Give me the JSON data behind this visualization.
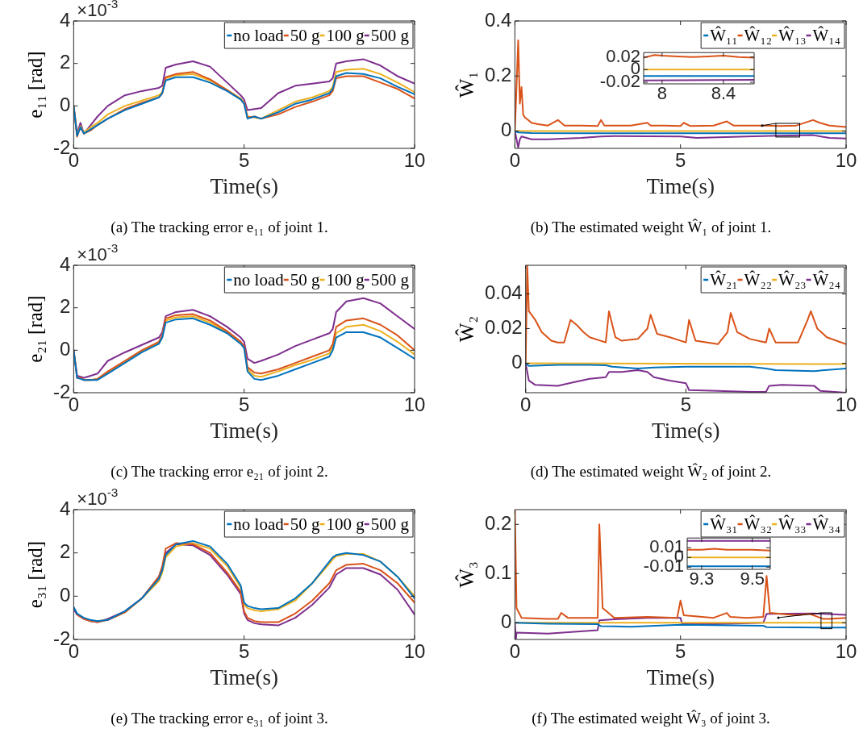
{
  "chart_data": [
    {
      "type": "line",
      "title": "(a) The tracking error e₁₁ of joint 1.",
      "xlabel": "Time(s)",
      "ylabel": "e₁₁ [rad]",
      "annotations": [
        "×10$^{-3}$"
      ],
      "legend": "top right",
      "x": [
        0,
        0.1,
        0.2,
        0.3,
        0.5,
        0.7,
        1,
        1.5,
        2,
        2.5,
        2.6,
        2.7,
        3,
        3.5,
        4,
        4.5,
        4.9,
        5,
        5.1,
        5.3,
        5.5,
        6,
        6.5,
        7,
        7.5,
        7.6,
        7.7,
        8,
        8.5,
        9,
        9.5,
        10
      ],
      "xlim": [
        0,
        10
      ],
      "xticks": [
        0,
        5,
        10
      ],
      "ylim": [
        -2,
        4
      ],
      "yticks": [
        -2,
        0,
        2,
        4
      ],
      "series": [
        {
          "name": "no load",
          "color": "#0072bd",
          "values": [
            0,
            -1.4,
            -1.0,
            -1.3,
            -1.1,
            -0.9,
            -0.6,
            -0.2,
            0.1,
            0.4,
            0.6,
            1.2,
            1.35,
            1.35,
            1.1,
            0.7,
            0.3,
            0.1,
            -0.6,
            -0.5,
            -0.6,
            -0.3,
            0.1,
            0.3,
            0.6,
            0.8,
            1.4,
            1.55,
            1.5,
            1.3,
            0.9,
            0.55
          ]
        },
        {
          "name": "50 g",
          "color": "#d95319",
          "values": [
            0,
            -1.45,
            -1.0,
            -1.3,
            -1.15,
            -0.9,
            -0.6,
            -0.15,
            0.15,
            0.4,
            0.6,
            1.35,
            1.5,
            1.6,
            1.25,
            0.75,
            0.3,
            0.1,
            -0.55,
            -0.5,
            -0.6,
            -0.4,
            -0.05,
            0.2,
            0.5,
            0.7,
            1.3,
            1.4,
            1.4,
            1.1,
            0.8,
            0.35
          ]
        },
        {
          "name": "100 g",
          "color": "#edb120",
          "values": [
            0,
            -1.35,
            -0.95,
            -1.25,
            -1.0,
            -0.8,
            -0.4,
            0.0,
            0.25,
            0.5,
            0.65,
            1.3,
            1.45,
            1.5,
            1.2,
            0.75,
            0.35,
            0.15,
            -0.5,
            -0.55,
            -0.6,
            -0.2,
            0.2,
            0.4,
            0.7,
            0.9,
            1.6,
            1.7,
            1.75,
            1.5,
            1.1,
            0.65
          ]
        },
        {
          "name": "500 g",
          "color": "#7e2f8e",
          "values": [
            0,
            -1.3,
            -0.8,
            -1.3,
            -0.9,
            -0.5,
            0,
            0.5,
            0.7,
            0.85,
            0.95,
            1.8,
            1.95,
            2.1,
            1.85,
            1.1,
            0.5,
            0.3,
            -0.2,
            -0.15,
            -0.1,
            0.6,
            0.95,
            1.05,
            1.15,
            1.3,
            2.0,
            2.1,
            2.2,
            1.9,
            1.4,
            1.05
          ]
        }
      ]
    },
    {
      "type": "line",
      "title": "(b) The estimated weight Ŵ₁ of joint 1.",
      "xlabel": "Time(s)",
      "ylabel": "Ŵ₁",
      "legend": "top right",
      "xlim": [
        0,
        10
      ],
      "xticks": [
        0,
        5,
        10
      ],
      "ylim": [
        -0.063,
        0.4
      ],
      "yticks": [
        0,
        0.2,
        0.4
      ],
      "series": [
        {
          "name": "Ŵ₁₁",
          "color": "#0072bd",
          "x": [
            0,
            0.1,
            0.5,
            2,
            5,
            7,
            10
          ],
          "values": [
            0,
            -0.005,
            -0.007,
            -0.008,
            -0.008,
            -0.008,
            -0.008
          ]
        },
        {
          "name": "Ŵ₁₂",
          "color": "#d95319",
          "x": [
            0,
            0.1,
            0.15,
            0.2,
            0.25,
            0.3,
            0.4,
            0.5,
            0.7,
            1,
            1.3,
            1.5,
            2,
            2.5,
            2.6,
            2.7,
            3,
            3.5,
            4,
            4.1,
            4.5,
            5,
            5.1,
            5.3,
            6,
            6.4,
            6.6,
            7,
            7.5,
            8,
            8.5,
            9,
            9.2,
            9.5,
            10
          ],
          "values": [
            0,
            0.33,
            0.1,
            0.16,
            0.06,
            0.05,
            0.04,
            0.03,
            0.025,
            0.02,
            0.04,
            0.02,
            0.02,
            0.018,
            0.04,
            0.02,
            0.02,
            0.02,
            0.03,
            0.02,
            0.02,
            0.018,
            0.03,
            0.018,
            0.02,
            0.035,
            0.02,
            0.02,
            0.02,
            0.018,
            0.02,
            0.04,
            0.03,
            0.02,
            0.015
          ]
        },
        {
          "name": "Ŵ₁₃",
          "color": "#edb120",
          "x": [
            0,
            10
          ],
          "values": [
            0,
            0
          ]
        },
        {
          "name": "Ŵ₁₄",
          "color": "#7e2f8e",
          "x": [
            0,
            0.1,
            0.15,
            0.2,
            0.5,
            1,
            2,
            2.6,
            3,
            5,
            5.5,
            7,
            8,
            9,
            9.5,
            10
          ],
          "values": [
            0,
            -0.06,
            -0.03,
            -0.02,
            -0.03,
            -0.03,
            -0.025,
            -0.02,
            -0.018,
            -0.02,
            -0.025,
            -0.02,
            -0.017,
            -0.015,
            -0.025,
            -0.027
          ]
        }
      ]
    },
    {
      "type": "line",
      "xlim": [
        7.88,
        8.6
      ],
      "xticks": [
        8,
        8.4
      ],
      "ylim": [
        -0.0225,
        0.027
      ],
      "yticks": [
        -0.02,
        0,
        0.02
      ],
      "series": [
        {
          "color": "#d95319",
          "x": [
            7.88,
            7.95,
            8.0,
            8.1,
            8.2,
            8.3,
            8.4,
            8.5,
            8.6
          ],
          "values": [
            0.019,
            0.023,
            0.022,
            0.021,
            0.02,
            0.021,
            0.022,
            0.02,
            0.019
          ]
        },
        {
          "color": "#edb120",
          "x": [
            7.88,
            8.6
          ],
          "values": [
            0,
            0
          ]
        },
        {
          "color": "#0072bd",
          "x": [
            7.88,
            8.6
          ],
          "values": [
            -0.01,
            -0.01
          ]
        },
        {
          "color": "#7e2f8e",
          "x": [
            7.88,
            8.6
          ],
          "values": [
            -0.017,
            -0.016
          ]
        }
      ]
    },
    {
      "type": "line",
      "title": "(c) The tracking error e₂₁ of joint 2.",
      "xlabel": "Time(s)",
      "ylabel": "e₂₁ [rad]",
      "annotations": [
        "×10$^{-3}$"
      ],
      "legend": "top right",
      "x": [
        0,
        0.1,
        0.2,
        0.3,
        0.5,
        0.7,
        1,
        1.5,
        2,
        2.5,
        2.6,
        2.7,
        3,
        3.5,
        4,
        4.5,
        4.9,
        5,
        5.1,
        5.3,
        5.5,
        6,
        6.5,
        7,
        7.5,
        7.6,
        7.7,
        8,
        8.5,
        9,
        9.5,
        10
      ],
      "xlim": [
        0,
        10
      ],
      "xticks": [
        0,
        5,
        10
      ],
      "ylim": [
        -2,
        4
      ],
      "yticks": [
        -2,
        0,
        2,
        4
      ],
      "series": [
        {
          "name": "no load",
          "color": "#0072bd",
          "values": [
            0,
            -1.3,
            -1.35,
            -1.4,
            -1.4,
            -1.4,
            -1.1,
            -0.6,
            -0.1,
            0.3,
            0.6,
            1.3,
            1.45,
            1.5,
            1.2,
            0.8,
            0.3,
            0.1,
            -1.0,
            -1.35,
            -1.4,
            -1.2,
            -0.9,
            -0.6,
            -0.3,
            0,
            0.6,
            0.85,
            0.85,
            0.6,
            0.1,
            -0.4
          ]
        },
        {
          "name": "50 g",
          "color": "#d95319",
          "values": [
            0,
            -1.3,
            -1.3,
            -1.4,
            -1.4,
            -1.35,
            -1.0,
            -0.5,
            0,
            0.4,
            0.7,
            1.5,
            1.65,
            1.7,
            1.4,
            0.9,
            0.4,
            0.2,
            -0.8,
            -1.05,
            -1.1,
            -0.9,
            -0.6,
            -0.3,
            0,
            0.3,
            1.1,
            1.4,
            1.5,
            1.2,
            0.7,
            0
          ]
        },
        {
          "name": "100 g",
          "color": "#edb120",
          "values": [
            null,
            null,
            null,
            -1.4,
            -1.4,
            -1.35,
            -1.05,
            -0.55,
            -0.05,
            0.35,
            0.65,
            1.4,
            1.55,
            1.6,
            1.3,
            0.85,
            0.35,
            0.15,
            -0.9,
            -1.2,
            -1.25,
            -1.0,
            -0.7,
            -0.45,
            -0.15,
            0.15,
            0.8,
            1.1,
            1.2,
            0.9,
            0.4,
            -0.2
          ]
        },
        {
          "name": "500 g",
          "color": "#7e2f8e",
          "values": [
            0,
            -1.2,
            -1.25,
            -1.3,
            -1.2,
            -1.1,
            -0.5,
            -0.1,
            0.25,
            0.6,
            0.85,
            1.6,
            1.8,
            1.9,
            1.6,
            1.1,
            0.6,
            0.4,
            -0.4,
            -0.6,
            -0.5,
            -0.2,
            0.2,
            0.5,
            0.8,
            1.0,
            1.8,
            2.3,
            2.45,
            2.2,
            1.6,
            1.0
          ]
        }
      ]
    },
    {
      "type": "line",
      "title": "(d) The estimated weight Ŵ₂ of joint 2.",
      "xlabel": "Time(s)",
      "ylabel": "Ŵ₂",
      "legend": "top right",
      "xlim": [
        0,
        10
      ],
      "xticks": [
        0,
        5,
        10
      ],
      "ylim": [
        -0.017,
        0.0565
      ],
      "yticks": [
        0,
        0.02,
        0.04
      ],
      "series": [
        {
          "name": "Ŵ₂₁",
          "color": "#0072bd",
          "x": [
            0,
            0.1,
            1,
            2,
            2.5,
            2.7,
            3.5,
            4,
            5,
            7,
            7.5,
            7.8,
            9,
            10
          ],
          "values": [
            0,
            -0.0015,
            -0.001,
            -0.001,
            -0.0012,
            -0.002,
            -0.003,
            -0.0025,
            -0.002,
            -0.002,
            -0.003,
            -0.004,
            -0.0045,
            -0.003
          ]
        },
        {
          "name": "Ŵ₂₂",
          "color": "#d95319",
          "x": [
            0,
            0.05,
            0.1,
            0.3,
            0.5,
            0.8,
            1,
            1.2,
            1.4,
            1.6,
            1.8,
            2,
            2.5,
            2.6,
            2.8,
            3,
            3.5,
            3.8,
            3.9,
            4.1,
            4.5,
            5,
            5.1,
            5.3,
            6,
            6.3,
            6.4,
            6.6,
            7,
            7.5,
            7.6,
            7.8,
            8.5,
            8.8,
            8.9,
            9.1,
            9.4,
            10
          ],
          "values": [
            0,
            0.0565,
            0.03,
            0.025,
            0.018,
            0.013,
            0.012,
            0.012,
            0.025,
            0.022,
            0.018,
            0.015,
            0.012,
            0.03,
            0.015,
            0.013,
            0.014,
            0.02,
            0.028,
            0.017,
            0.015,
            0.012,
            0.025,
            0.013,
            0.011,
            0.018,
            0.029,
            0.018,
            0.014,
            0.012,
            0.02,
            0.012,
            0.012,
            0.025,
            0.03,
            0.02,
            0.015,
            0.011
          ]
        },
        {
          "name": "Ŵ₂₃",
          "color": "#edb120",
          "x": [
            0,
            10
          ],
          "values": [
            0,
            -0.0005
          ]
        },
        {
          "name": "Ŵ₂₄",
          "color": "#7e2f8e",
          "x": [
            0,
            0.1,
            0.3,
            1,
            1.5,
            2,
            2.5,
            2.6,
            3,
            3.5,
            3.8,
            4,
            4.5,
            5,
            5.1,
            6,
            7,
            7.5,
            7.6,
            8,
            9,
            9.2,
            10
          ],
          "values": [
            0,
            -0.01,
            -0.0125,
            -0.013,
            -0.011,
            -0.009,
            -0.008,
            -0.005,
            -0.005,
            -0.004,
            -0.005,
            -0.008,
            -0.01,
            -0.0115,
            -0.0155,
            -0.016,
            -0.0165,
            -0.0165,
            -0.013,
            -0.0125,
            -0.013,
            -0.016,
            -0.017
          ]
        }
      ]
    },
    {
      "type": "line",
      "title": "(e) The tracking error e₃₁ of joint 3.",
      "xlabel": "Time(s)",
      "ylabel": "e₃₁ [rad]",
      "annotations": [
        "×10$^{-3}$"
      ],
      "legend": "top right",
      "x": [
        0,
        0.1,
        0.2,
        0.3,
        0.5,
        0.7,
        1,
        1.5,
        2,
        2.5,
        2.6,
        2.7,
        3,
        3.5,
        4,
        4.5,
        4.9,
        5,
        5.1,
        5.3,
        5.5,
        6,
        6.5,
        7,
        7.5,
        7.6,
        7.7,
        8,
        8.5,
        9,
        9.5,
        10
      ],
      "xlim": [
        0,
        10
      ],
      "xticks": [
        0,
        5,
        10
      ],
      "ylim": [
        -2,
        4
      ],
      "yticks": [
        -2,
        0,
        2,
        4
      ],
      "series": [
        {
          "name": "no load",
          "color": "#0072bd",
          "values": [
            -0.5,
            -0.8,
            -0.9,
            -1.0,
            -1.1,
            -1.15,
            -1.1,
            -0.7,
            -0.1,
            0.8,
            1.2,
            1.9,
            2.4,
            2.55,
            2.3,
            1.5,
            0.5,
            -0.3,
            -0.45,
            -0.55,
            -0.6,
            -0.55,
            -0.1,
            0.6,
            1.6,
            1.8,
            1.9,
            2.0,
            1.9,
            1.6,
            0.9,
            -0.1
          ]
        },
        {
          "name": "50 g",
          "color": "#d95319",
          "values": [
            null,
            -0.85,
            -0.95,
            -1.05,
            -1.15,
            -1.2,
            -1.1,
            -0.75,
            -0.1,
            0.9,
            1.4,
            2.2,
            2.45,
            2.4,
            2.0,
            1.1,
            0.2,
            -0.7,
            -1.0,
            -1.15,
            -1.2,
            -1.2,
            -0.8,
            -0.2,
            0.6,
            0.9,
            1.2,
            1.45,
            1.5,
            1.2,
            0.6,
            -0.3
          ]
        },
        {
          "name": "100 g",
          "color": "#edb120",
          "values": [
            null,
            null,
            null,
            null,
            null,
            -1.15,
            -1.1,
            -0.75,
            -0.1,
            0.7,
            1.1,
            1.8,
            2.3,
            2.45,
            2.2,
            1.4,
            0.4,
            -0.4,
            -0.55,
            -0.65,
            -0.7,
            -0.6,
            -0.2,
            0.6,
            1.5,
            1.7,
            1.85,
            1.95,
            1.95,
            1.6,
            0.9,
            0
          ]
        },
        {
          "name": "500 g",
          "color": "#7e2f8e",
          "values": [
            -0.6,
            -0.85,
            -0.95,
            -1.05,
            -1.15,
            -1.2,
            -1.05,
            -0.7,
            -0.1,
            0.9,
            1.3,
            2.0,
            2.4,
            2.35,
            1.9,
            1.0,
            0.1,
            -0.8,
            -1.1,
            -1.25,
            -1.3,
            -1.35,
            -1.0,
            -0.4,
            0.4,
            0.7,
            1.0,
            1.3,
            1.3,
            1.0,
            0.3,
            -0.85
          ]
        }
      ]
    },
    {
      "type": "line",
      "title": "(f) The estimated weight Ŵ₃ of joint 3.",
      "xlabel": "Time(s)",
      "ylabel": "Ŵ₃",
      "legend": "top right",
      "xlim": [
        0,
        10
      ],
      "xticks": [
        0,
        5,
        10
      ],
      "ylim": [
        -0.034,
        0.23
      ],
      "yticks": [
        0,
        0.1,
        0.2
      ],
      "series": [
        {
          "name": "Ŵ₃₁",
          "color": "#0072bd",
          "x": [
            0,
            1,
            2.5,
            2.6,
            3.5,
            5,
            7.5,
            7.6,
            10
          ],
          "values": [
            0,
            -0.002,
            -0.003,
            -0.007,
            -0.008,
            -0.004,
            -0.006,
            -0.009,
            -0.01
          ]
        },
        {
          "name": "Ŵ₃₂",
          "color": "#d95319",
          "x": [
            0,
            0.05,
            0.2,
            1,
            1.3,
            1.4,
            1.6,
            2.5,
            2.55,
            2.65,
            3,
            4,
            4.9,
            5,
            5.1,
            6,
            6.4,
            6.5,
            7,
            7.5,
            7.6,
            7.7,
            8.5,
            8.9,
            9.3,
            9.5,
            10
          ],
          "values": [
            0.23,
            0.03,
            0.01,
            0.008,
            0.008,
            0.02,
            0.01,
            0.01,
            0.2,
            0.03,
            0.01,
            0.012,
            0.01,
            0.045,
            0.015,
            0.01,
            0.02,
            0.012,
            0.01,
            0.012,
            0.095,
            0.02,
            0.015,
            0.018,
            0.008,
            0.008,
            0.01
          ]
        },
        {
          "name": "Ŵ₃₃",
          "color": "#edb120",
          "x": [
            0,
            10
          ],
          "values": [
            0,
            0
          ]
        },
        {
          "name": "Ŵ₃₄",
          "color": "#7e2f8e",
          "x": [
            0,
            0.03,
            0.05,
            1,
            2.5,
            2.55,
            3,
            4,
            5,
            5.05,
            6,
            7.5,
            7.6,
            9,
            10
          ],
          "values": [
            0,
            -0.034,
            -0.02,
            -0.022,
            -0.015,
            0.005,
            0.007,
            0.01,
            0.01,
            -0.003,
            -0.003,
            0,
            0.018,
            0.019,
            0.016
          ]
        }
      ]
    },
    {
      "type": "line",
      "xlim": [
        9.243,
        9.571
      ],
      "xticks": [
        9.3,
        9.5
      ],
      "ylim": [
        -0.0122,
        0.02
      ],
      "yticks": [
        -0.01,
        0,
        0.01
      ],
      "series": [
        {
          "color": "#7e2f8e",
          "x": [
            9.243,
            9.571
          ],
          "values": [
            0.017,
            0.017
          ]
        },
        {
          "color": "#d95319",
          "x": [
            9.243,
            9.3,
            9.35,
            9.4,
            9.45,
            9.5,
            9.571
          ],
          "values": [
            0.008,
            0.008,
            0.009,
            0.008,
            0.008,
            0.008,
            0.007
          ]
        },
        {
          "color": "#edb120",
          "x": [
            9.243,
            9.571
          ],
          "values": [
            0,
            0
          ]
        },
        {
          "color": "#0072bd",
          "x": [
            9.243,
            9.571
          ],
          "values": [
            -0.009,
            -0.009
          ]
        }
      ]
    }
  ]
}
